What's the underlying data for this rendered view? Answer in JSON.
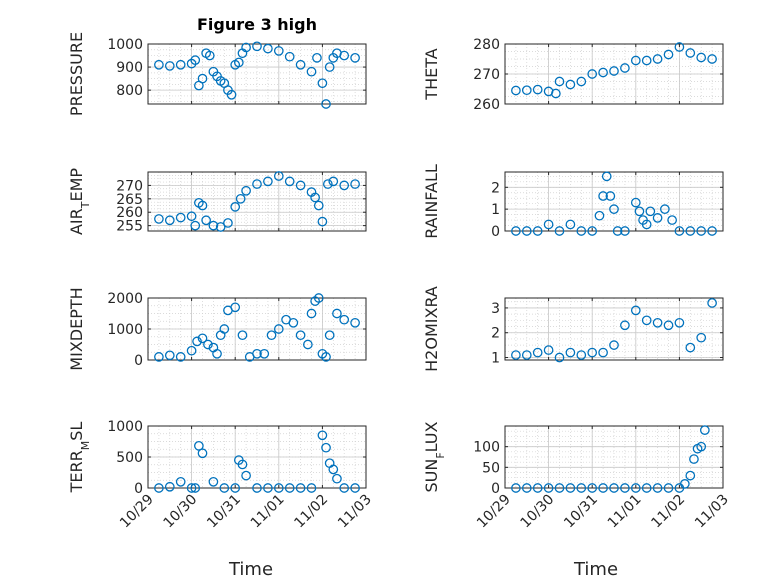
{
  "figure": {
    "title": "Figure 3 high",
    "marker_color": "#0072BD"
  },
  "chart_data": [
    {
      "type": "scatter",
      "ylabel": "PRESSURE",
      "title": "Figure 3 high",
      "ylim": [
        740,
        1000
      ],
      "yticks": [
        800,
        900,
        1000
      ],
      "grid": true,
      "x": [
        "10/29 06:00",
        "10/29 12:00",
        "10/29 18:00",
        "10/30 00:00",
        "10/30 02:00",
        "10/30 04:00",
        "10/30 06:00",
        "10/30 08:00",
        "10/30 10:00",
        "10/30 12:00",
        "10/30 14:00",
        "10/30 16:00",
        "10/30 18:00",
        "10/30 20:00",
        "10/30 22:00",
        "10/31 00:00",
        "10/31 02:00",
        "10/31 04:00",
        "10/31 06:00",
        "10/31 12:00",
        "10/31 18:00",
        "11/01 00:00",
        "11/01 06:00",
        "11/01 12:00",
        "11/01 18:00",
        "11/01 21:00",
        "11/02 00:00",
        "11/02 02:00",
        "11/02 04:00",
        "11/02 06:00",
        "11/02 08:00",
        "11/02 12:00",
        "11/02 18:00"
      ],
      "y": [
        910,
        905,
        910,
        915,
        930,
        820,
        850,
        960,
        950,
        880,
        860,
        840,
        830,
        800,
        780,
        910,
        920,
        960,
        985,
        990,
        980,
        970,
        945,
        910,
        880,
        940,
        830,
        740,
        900,
        940,
        960,
        950,
        940
      ]
    },
    {
      "type": "scatter",
      "ylabel": "THETA",
      "ylim": [
        260,
        280
      ],
      "yticks": [
        260,
        270,
        280
      ],
      "grid": true,
      "x": [
        "10/29 06:00",
        "10/29 12:00",
        "10/29 18:00",
        "10/30 00:00",
        "10/30 04:00",
        "10/30 06:00",
        "10/30 12:00",
        "10/30 18:00",
        "10/31 00:00",
        "10/31 06:00",
        "10/31 12:00",
        "10/31 18:00",
        "11/01 00:00",
        "11/01 06:00",
        "11/01 12:00",
        "11/01 18:00",
        "11/02 00:00",
        "11/02 06:00",
        "11/02 12:00",
        "11/02 18:00"
      ],
      "y": [
        264.5,
        264.6,
        264.8,
        264.2,
        263.5,
        267.5,
        266.5,
        267.5,
        270.0,
        270.5,
        271.0,
        272.0,
        274.5,
        274.5,
        275.0,
        276.5,
        279.0,
        277.0,
        275.5,
        275.0
      ]
    },
    {
      "type": "scatter",
      "ylabel": "AIR_TEMP",
      "ylim": [
        253,
        275
      ],
      "yticks": [
        255,
        260,
        265,
        270
      ],
      "grid": true,
      "x": [
        "10/29 06:00",
        "10/29 12:00",
        "10/29 18:00",
        "10/30 00:00",
        "10/30 02:00",
        "10/30 04:00",
        "10/30 06:00",
        "10/30 08:00",
        "10/30 12:00",
        "10/30 16:00",
        "10/30 20:00",
        "10/31 00:00",
        "10/31 03:00",
        "10/31 06:00",
        "10/31 12:00",
        "10/31 18:00",
        "11/01 00:00",
        "11/01 06:00",
        "11/01 12:00",
        "11/01 18:00",
        "11/01 20:00",
        "11/01 22:00",
        "11/02 00:00",
        "11/02 03:00",
        "11/02 06:00",
        "11/02 12:00",
        "11/02 18:00"
      ],
      "y": [
        257.5,
        257.0,
        258.0,
        258.5,
        255.0,
        263.5,
        262.5,
        257.0,
        255.0,
        254.5,
        256.0,
        262.0,
        265.0,
        268.0,
        270.5,
        271.5,
        273.5,
        271.5,
        270.0,
        267.5,
        265.5,
        262.5,
        256.5,
        270.5,
        271.5,
        270.0,
        270.5
      ]
    },
    {
      "type": "scatter",
      "ylabel": "RAINFALL",
      "ylim": [
        0,
        2.7
      ],
      "yticks": [
        0,
        1,
        2
      ],
      "grid": true,
      "x": [
        "10/29 06:00",
        "10/29 12:00",
        "10/29 18:00",
        "10/30 00:00",
        "10/30 06:00",
        "10/30 12:00",
        "10/30 18:00",
        "10/31 00:00",
        "10/31 04:00",
        "10/31 06:00",
        "10/31 08:00",
        "10/31 10:00",
        "10/31 12:00",
        "10/31 14:00",
        "10/31 18:00",
        "11/01 00:00",
        "11/01 02:00",
        "11/01 04:00",
        "11/01 06:00",
        "11/01 08:00",
        "11/01 12:00",
        "11/01 16:00",
        "11/01 20:00",
        "11/02 00:00",
        "11/02 06:00",
        "11/02 12:00",
        "11/02 18:00"
      ],
      "y": [
        0,
        0,
        0,
        0.3,
        0,
        0.3,
        0,
        0,
        0.7,
        1.6,
        2.5,
        1.6,
        1.0,
        0,
        0,
        1.3,
        0.9,
        0.5,
        0.3,
        0.9,
        0.6,
        1.0,
        0.5,
        0,
        0,
        0,
        0
      ]
    },
    {
      "type": "scatter",
      "ylabel": "MIXDEPTH",
      "ylim": [
        0,
        2000
      ],
      "yticks": [
        0,
        1000,
        2000
      ],
      "grid": true,
      "x": [
        "10/29 06:00",
        "10/29 12:00",
        "10/29 18:00",
        "10/30 00:00",
        "10/30 03:00",
        "10/30 06:00",
        "10/30 09:00",
        "10/30 12:00",
        "10/30 14:00",
        "10/30 16:00",
        "10/30 18:00",
        "10/30 20:00",
        "10/31 00:00",
        "10/31 04:00",
        "10/31 08:00",
        "10/31 12:00",
        "10/31 16:00",
        "10/31 20:00",
        "11/01 00:00",
        "11/01 04:00",
        "11/01 08:00",
        "11/01 12:00",
        "11/01 16:00",
        "11/01 18:00",
        "11/01 20:00",
        "11/01 22:00",
        "11/02 00:00",
        "11/02 02:00",
        "11/02 04:00",
        "11/02 08:00",
        "11/02 12:00",
        "11/02 18:00"
      ],
      "y": [
        100,
        150,
        100,
        300,
        600,
        700,
        500,
        400,
        200,
        800,
        1000,
        1600,
        1700,
        800,
        100,
        200,
        200,
        800,
        1000,
        1300,
        1200,
        800,
        500,
        1500,
        1900,
        2000,
        200,
        100,
        800,
        1500,
        1300,
        1200
      ]
    },
    {
      "type": "scatter",
      "ylabel": "H2OMIXRA",
      "ylim": [
        0.9,
        3.4
      ],
      "yticks": [
        1,
        2,
        3
      ],
      "grid": true,
      "x": [
        "10/29 06:00",
        "10/29 12:00",
        "10/29 18:00",
        "10/30 00:00",
        "10/30 06:00",
        "10/30 12:00",
        "10/30 18:00",
        "10/31 00:00",
        "10/31 06:00",
        "10/31 12:00",
        "10/31 18:00",
        "11/01 00:00",
        "11/01 06:00",
        "11/01 12:00",
        "11/01 18:00",
        "11/02 00:00",
        "11/02 06:00",
        "11/02 12:00",
        "11/02 18:00"
      ],
      "y": [
        1.1,
        1.1,
        1.2,
        1.3,
        1.0,
        1.2,
        1.1,
        1.2,
        1.2,
        1.5,
        2.3,
        2.9,
        2.5,
        2.4,
        2.3,
        2.4,
        1.4,
        1.8,
        3.2
      ]
    },
    {
      "type": "scatter",
      "ylabel": "TERR_MSL",
      "ylim": [
        0,
        1000
      ],
      "yticks": [
        0,
        500,
        1000
      ],
      "grid": true,
      "x": [
        "10/29 06:00",
        "10/29 12:00",
        "10/29 18:00",
        "10/30 00:00",
        "10/30 02:00",
        "10/30 04:00",
        "10/30 06:00",
        "10/30 12:00",
        "10/30 18:00",
        "10/31 00:00",
        "10/31 02:00",
        "10/31 04:00",
        "10/31 06:00",
        "10/31 12:00",
        "10/31 18:00",
        "11/01 00:00",
        "11/01 06:00",
        "11/01 12:00",
        "11/01 18:00",
        "11/02 00:00",
        "11/02 02:00",
        "11/02 04:00",
        "11/02 06:00",
        "11/02 08:00",
        "11/02 12:00",
        "11/02 18:00"
      ],
      "y": [
        0,
        20,
        100,
        0,
        0,
        680,
        560,
        100,
        0,
        0,
        450,
        380,
        200,
        0,
        0,
        0,
        0,
        0,
        0,
        850,
        650,
        400,
        300,
        150,
        0,
        0
      ]
    },
    {
      "type": "scatter",
      "ylabel": "SUN_FLUX",
      "ylim": [
        0,
        150
      ],
      "yticks": [
        0,
        50,
        100
      ],
      "grid": true,
      "x": [
        "10/29 06:00",
        "10/29 12:00",
        "10/29 18:00",
        "10/30 00:00",
        "10/30 06:00",
        "10/30 12:00",
        "10/30 18:00",
        "10/31 00:00",
        "10/31 06:00",
        "10/31 12:00",
        "10/31 18:00",
        "11/01 00:00",
        "11/01 06:00",
        "11/01 12:00",
        "11/01 18:00",
        "11/02 00:00",
        "11/02 03:00",
        "11/02 06:00",
        "11/02 08:00",
        "11/02 10:00",
        "11/02 12:00",
        "11/02 14:00"
      ],
      "y": [
        0,
        0,
        0,
        0,
        0,
        0,
        0,
        0,
        0,
        0,
        0,
        0,
        0,
        0,
        0,
        0,
        10,
        30,
        70,
        95,
        100,
        140
      ]
    }
  ],
  "x_axis": {
    "label": "Time",
    "ticks": [
      "10/29",
      "10/30",
      "10/31",
      "11/01",
      "11/02",
      "11/03"
    ]
  }
}
